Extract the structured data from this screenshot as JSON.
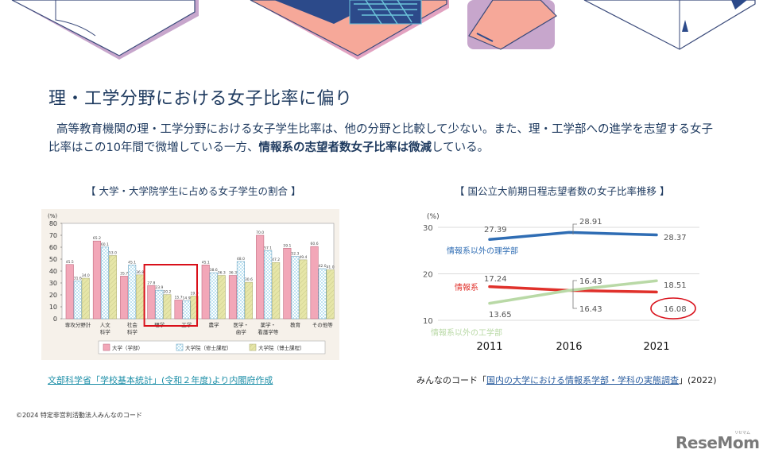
{
  "header": {
    "title": "理・工学分野における女子比率に偏り",
    "lead_part1": "高等教育機関の理・工学分野における女子学生比率は、他の分野と比較して少ない。また、理・工学部への進学を志望する女子比率はこの10年間で微増している一方、",
    "lead_bold1": "情報系の志望者数女子比率は微減",
    "lead_part2": "している。"
  },
  "left_chart": {
    "caption": "【 大学・大学院学生に占める女子学生の割合 】",
    "source": "文部科学省「学校基本統計」(令和２年度)より内閣府作成"
  },
  "right_chart": {
    "caption": "【 国公立大前期日程志望者数の女子比率推移 】",
    "source_prefix": "みんなのコード「",
    "source_link": "国内の大学における情報系学部・学科の実態調査",
    "source_suffix": "」(2022)"
  },
  "footer": {
    "copyright": "©2024 特定非営利活動法人みんなのコード",
    "logo": "ReseMom",
    "logo_kana": "リセマム"
  },
  "colors": {
    "title": "#1e3a5f",
    "bar_undergrad": "#f2a7b8",
    "bar_master": "#bfe3f2",
    "bar_doctor": "#e6e6a8",
    "highlight": "#d9101a",
    "line_science": "#2f6db4",
    "line_info": "#e0312b",
    "line_engineering": "#b9d9a6",
    "source_link": "#1d8fa8"
  },
  "chart_data": [
    {
      "type": "bar",
      "title": "大学・大学院学生に占める女子学生の割合",
      "ylabel": "(%)",
      "ylim": [
        0,
        80
      ],
      "yticks": [
        0,
        10,
        20,
        30,
        40,
        50,
        60,
        70,
        80
      ],
      "categories": [
        "専攻分野計",
        "人文科学",
        "社会科学",
        "理学",
        "工学",
        "農学",
        "医学・歯学",
        "薬学・看護学等",
        "教育",
        "その他等"
      ],
      "series": [
        {
          "name": "大学（学部）",
          "values": [
            45.5,
            65.2,
            35.7,
            27.8,
            15.7,
            45.1,
            36.3,
            70.0,
            59.1,
            60.6
          ]
        },
        {
          "name": "大学院（修士課程）",
          "values": [
            31.6,
            60.1,
            45.1,
            23.9,
            14.9,
            38.6,
            48.0,
            57.1,
            52.3,
            42.0
          ]
        },
        {
          "name": "大学院（博士課程）",
          "values": [
            34.0,
            53.0,
            36.8,
            20.2,
            19.0,
            36.3,
            30.6,
            47.2,
            49.4,
            41.0
          ]
        }
      ],
      "legend_position": "bottom",
      "annotations": [
        "理学・工学 highlighted with red box"
      ]
    },
    {
      "type": "line",
      "title": "国公立大前期日程志望者数の女子比率推移",
      "ylabel": "(%)",
      "ylim": [
        10,
        30
      ],
      "yticks": [
        10,
        20,
        30
      ],
      "x": [
        "2011",
        "2016",
        "2021"
      ],
      "series": [
        {
          "name": "情報系以外の理学部",
          "values": [
            27.39,
            28.91,
            28.37
          ]
        },
        {
          "name": "情報系",
          "values": [
            17.24,
            16.43,
            16.08
          ]
        },
        {
          "name": "情報系以外の工学部",
          "values": [
            13.65,
            16.43,
            18.51
          ]
        }
      ],
      "grid": true,
      "annotations": [
        "16.08 circled in red"
      ]
    }
  ]
}
